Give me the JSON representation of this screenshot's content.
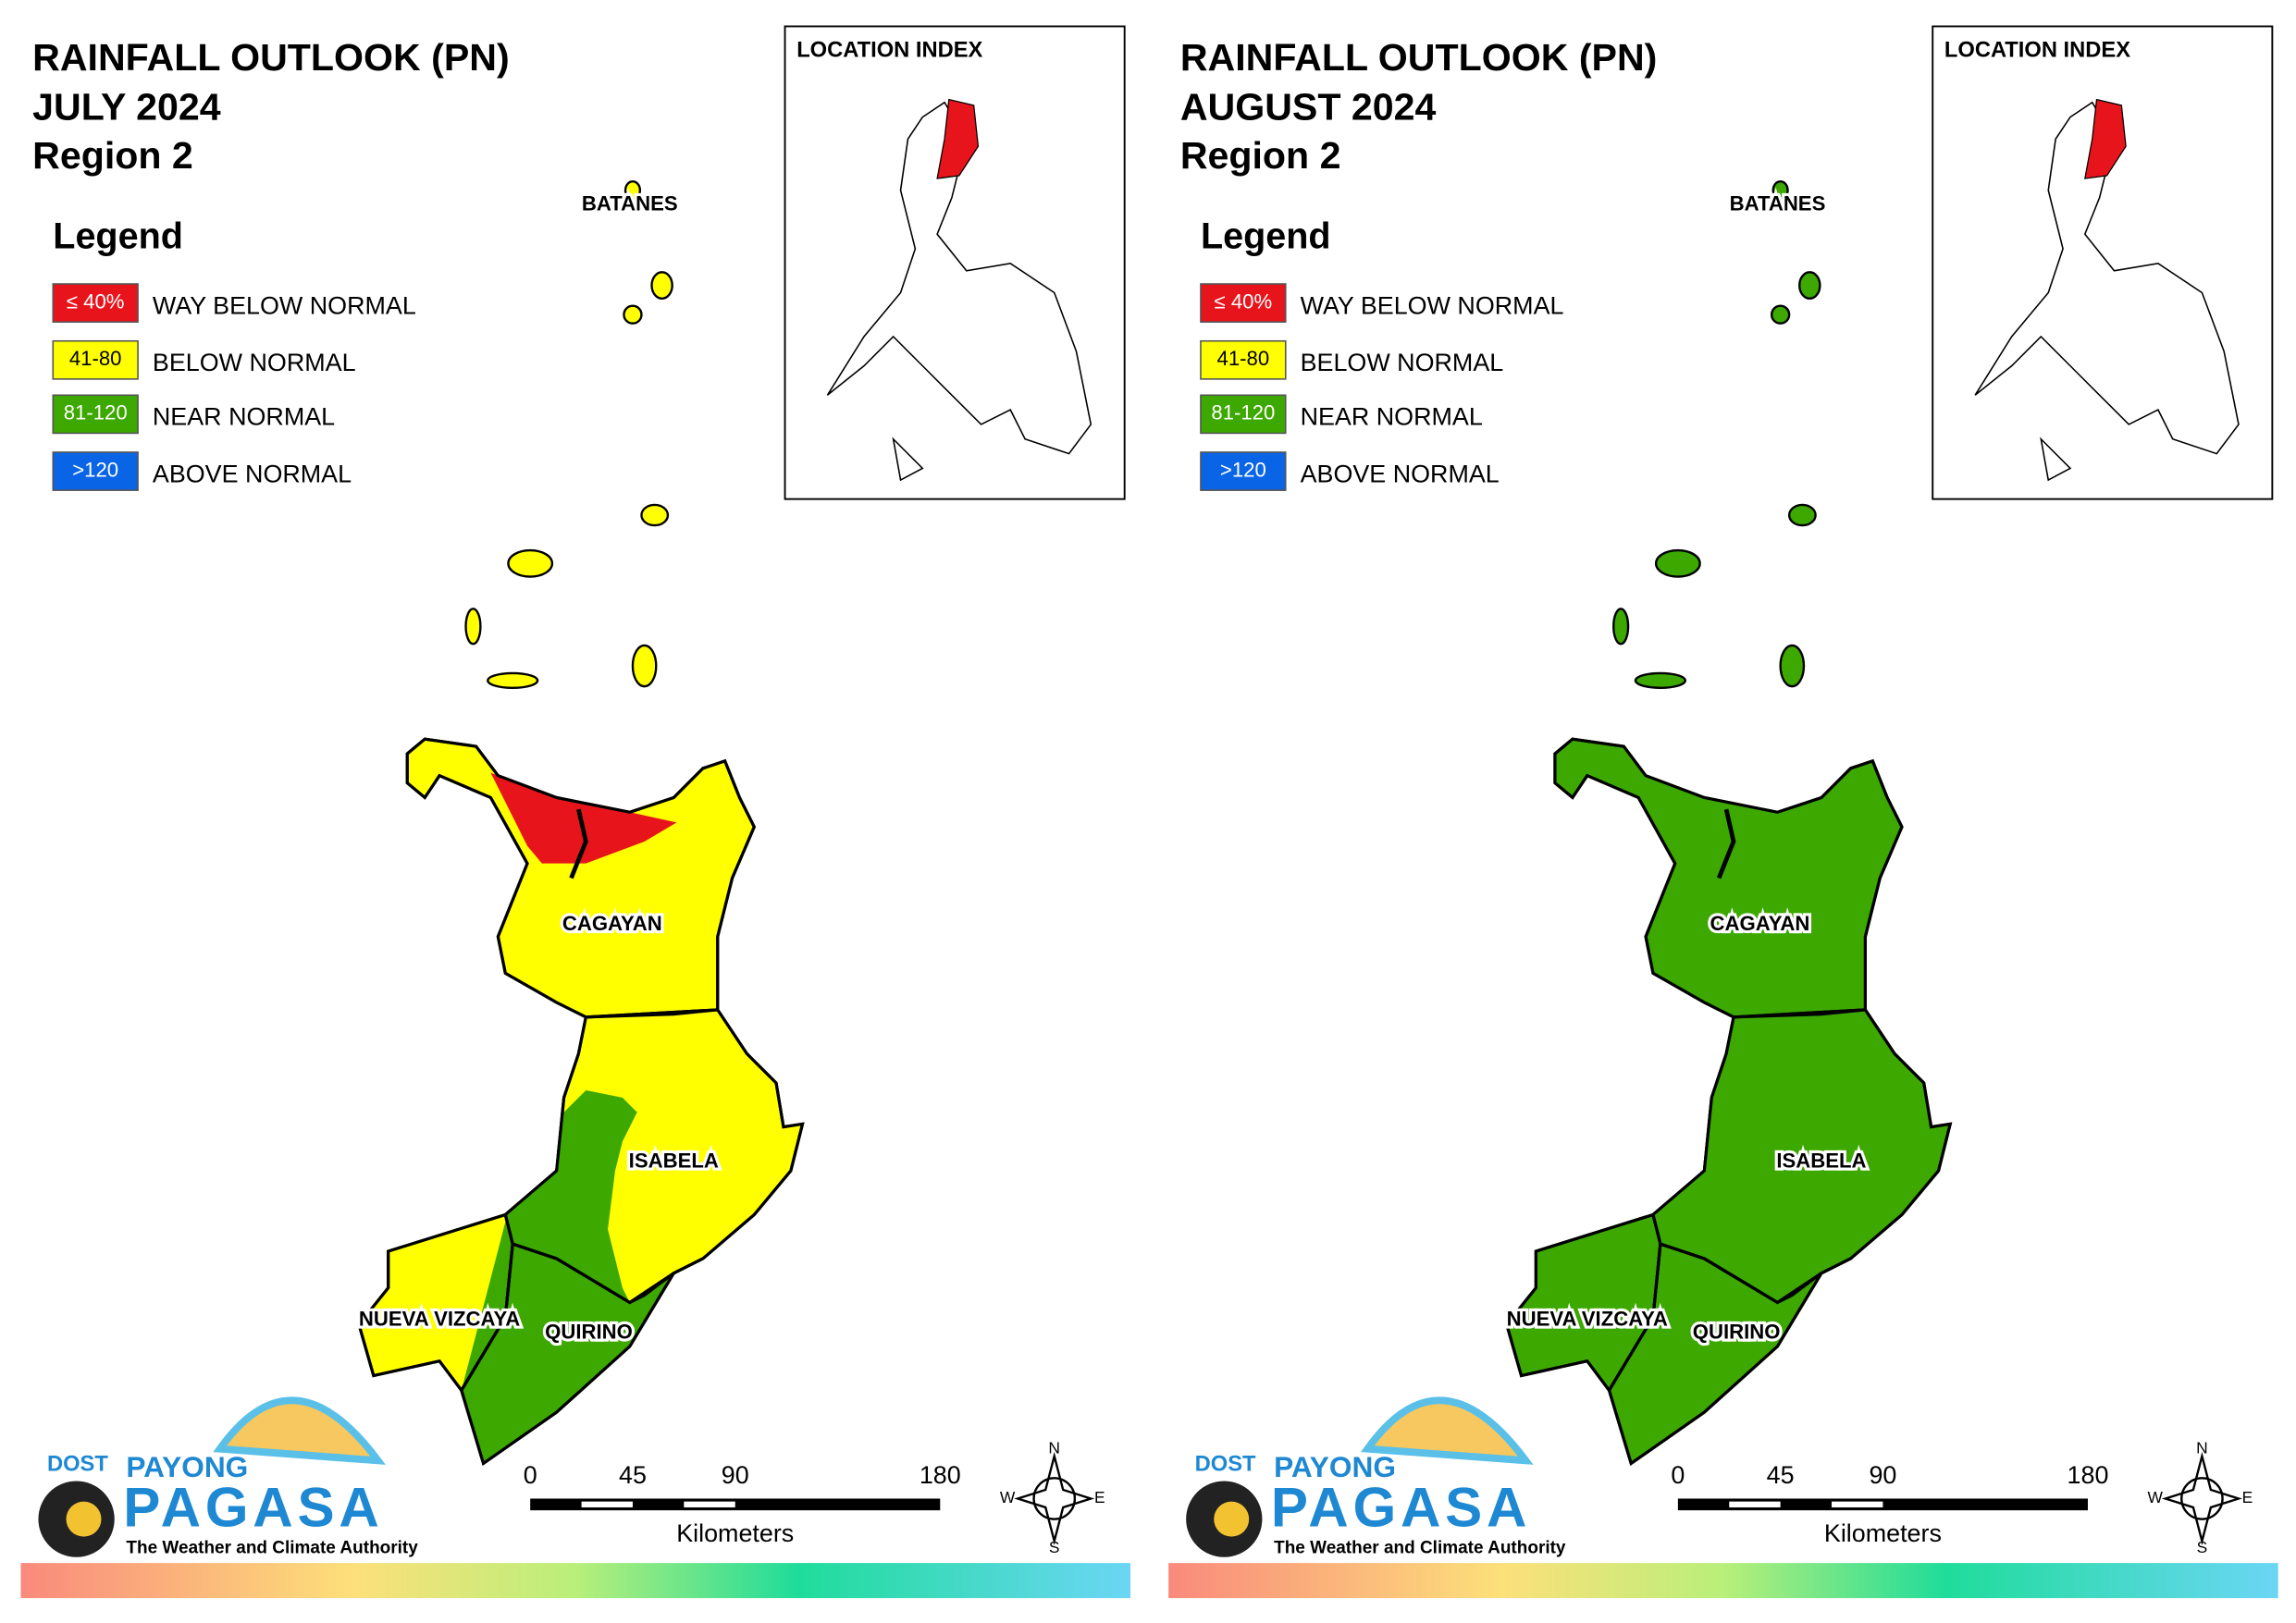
{
  "panels": [
    {
      "title": "RAINFALL OUTLOOK (PN)",
      "period": "JULY 2024",
      "region": "Region 2",
      "legend_title": "Legend",
      "legend": [
        {
          "swatch": "≤ 40%",
          "label": "WAY BELOW NORMAL",
          "color": "#e8141c"
        },
        {
          "swatch": "41-80",
          "label": "BELOW NORMAL",
          "color": "#ffff00"
        },
        {
          "swatch": "81-120",
          "label": "NEAR NORMAL",
          "color": "#3ca800"
        },
        {
          "swatch": ">120",
          "label": "ABOVE NORMAL",
          "color": "#0a64e6"
        }
      ],
      "fills": {
        "islands": "#ffff00",
        "cagayan": "#ffff00",
        "cagayan_north": "#e8141c",
        "isabela": "#ffff00",
        "isabela_west": "#3ca800",
        "nueva_vizcaya": "#ffff00",
        "nv_east": "#3ca800",
        "quirino": "#3ca800"
      },
      "inset_title": "LOCATION INDEX",
      "provinces": {
        "batanes": "BATANES",
        "cagayan": "CAGAYAN",
        "isabela": "ISABELA",
        "nueva_vizcaya": "NUEVA VIZCAYA",
        "quirino": "QUIRINO"
      },
      "scale": {
        "ticks": [
          "0",
          "45",
          "90",
          "180"
        ],
        "unit": "Kilometers"
      },
      "compass": {
        "n": "N",
        "e": "E",
        "s": "S",
        "w": "W"
      },
      "logo": {
        "dost": "DOST",
        "payong": "PAYONG",
        "pagasa": "PAGASA",
        "tagline": "The Weather and Climate Authority"
      }
    },
    {
      "title": "RAINFALL OUTLOOK (PN)",
      "period": "AUGUST 2024",
      "region": "Region 2",
      "legend_title": "Legend",
      "legend": [
        {
          "swatch": "≤ 40%",
          "label": "WAY BELOW NORMAL",
          "color": "#e8141c"
        },
        {
          "swatch": "41-80",
          "label": "BELOW NORMAL",
          "color": "#ffff00"
        },
        {
          "swatch": "81-120",
          "label": "NEAR NORMAL",
          "color": "#3ca800"
        },
        {
          "swatch": ">120",
          "label": "ABOVE NORMAL",
          "color": "#0a64e6"
        }
      ],
      "fills": {
        "islands": "#3ca800",
        "cagayan": "#3ca800",
        "cagayan_north": "#3ca800",
        "isabela": "#3ca800",
        "isabela_west": "#3ca800",
        "nueva_vizcaya": "#3ca800",
        "nv_east": "#3ca800",
        "quirino": "#3ca800"
      },
      "inset_title": "LOCATION INDEX",
      "provinces": {
        "batanes": "BATANES",
        "cagayan": "CAGAYAN",
        "isabela": "ISABELA",
        "nueva_vizcaya": "NUEVA VIZCAYA",
        "quirino": "QUIRINO"
      },
      "scale": {
        "ticks": [
          "0",
          "45",
          "90",
          "180"
        ],
        "unit": "Kilometers"
      },
      "compass": {
        "n": "N",
        "e": "E",
        "s": "S",
        "w": "W"
      },
      "logo": {
        "dost": "DOST",
        "payong": "PAYONG",
        "pagasa": "PAGASA",
        "tagline": "The Weather and Climate Authority"
      }
    }
  ]
}
